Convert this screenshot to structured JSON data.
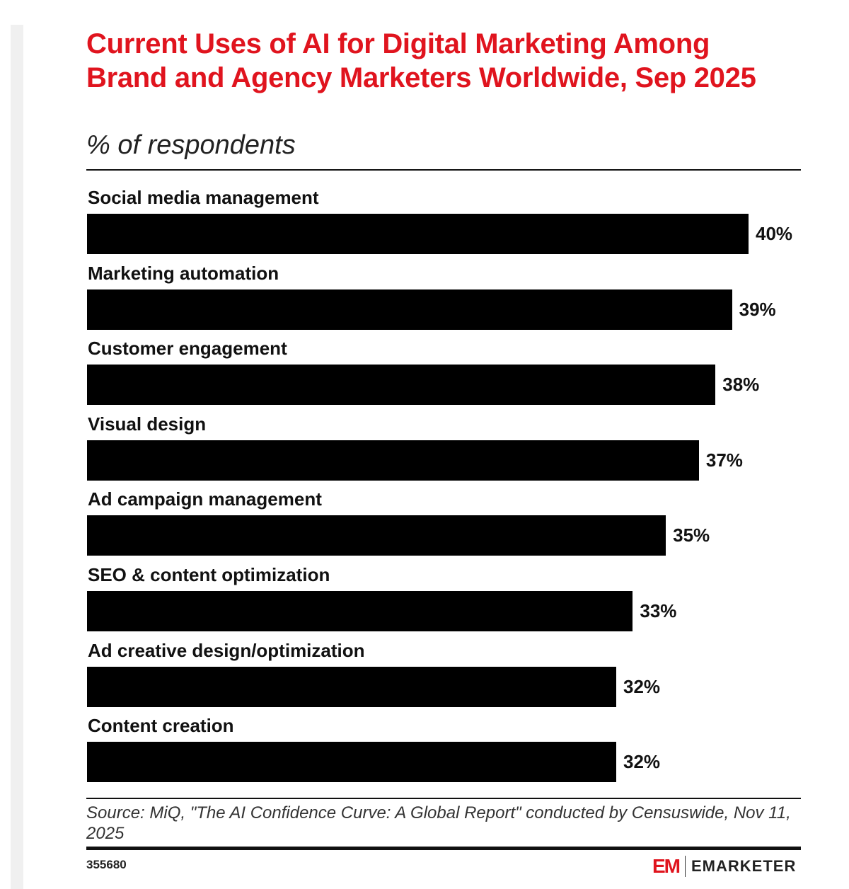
{
  "chart_data": {
    "type": "bar",
    "orientation": "horizontal",
    "title": "Current Uses of AI for Digital Marketing Among Brand and Agency Marketers Worldwide, Sep 2025",
    "subtitle": "% of respondents",
    "categories": [
      "Social media management",
      "Marketing automation",
      "Customer engagement",
      "Visual design",
      "Ad campaign management",
      "SEO & content optimization",
      "Ad creative design/optimization",
      "Content creation"
    ],
    "values": [
      40,
      39,
      38,
      37,
      35,
      33,
      32,
      32
    ],
    "value_labels": [
      "40%",
      "39%",
      "38%",
      "37%",
      "35%",
      "33%",
      "32%",
      "32%"
    ],
    "xlim": [
      0,
      40
    ],
    "grid": false,
    "bar_color": "#000000",
    "title_color": "#e0141e"
  },
  "footer": {
    "source": "Source: MiQ, \"The AI Confidence Curve: A Global Report\" conducted by Censuswide, Nov 11, 2025",
    "chart_id": "355680",
    "logo_mark": "EM",
    "logo_text": "EMARKETER"
  }
}
